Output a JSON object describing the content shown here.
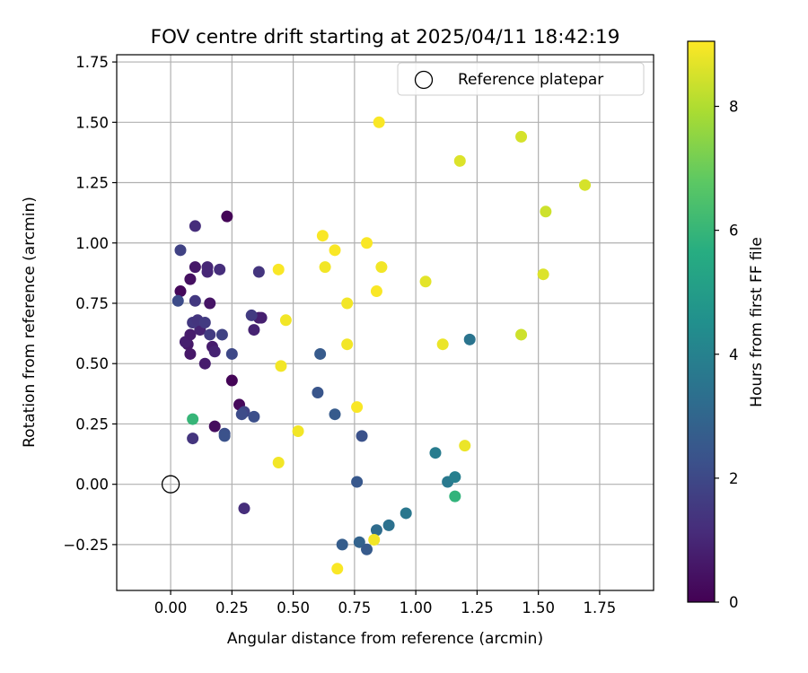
{
  "chart_data": {
    "type": "scatter",
    "title": "FOV centre drift starting at 2025/04/11 18:42:19",
    "xlabel": "Angular distance from reference (arcmin)",
    "ylabel": "Rotation from reference (arcmin)",
    "xlim": [
      -0.22,
      1.97
    ],
    "ylim": [
      -0.44,
      1.78
    ],
    "xticks": [
      0.0,
      0.25,
      0.5,
      0.75,
      1.0,
      1.25,
      1.5,
      1.75
    ],
    "xtick_labels": [
      "0.00",
      "0.25",
      "0.50",
      "0.75",
      "1.00",
      "1.25",
      "1.50",
      "1.75"
    ],
    "yticks": [
      -0.25,
      0.0,
      0.25,
      0.5,
      0.75,
      1.0,
      1.25,
      1.5,
      1.75
    ],
    "ytick_labels": [
      "−0.25",
      "0.00",
      "0.25",
      "0.50",
      "0.75",
      "1.00",
      "1.25",
      "1.50",
      "1.75"
    ],
    "grid": true,
    "legend": {
      "position": "top-right",
      "label": "Reference platepar"
    },
    "reference_point": {
      "x": 0.0,
      "y": 0.0
    },
    "colorbar": {
      "label": "Hours from first FF file",
      "colormap": "viridis",
      "range": [
        0,
        9.05
      ],
      "ticks": [
        0,
        2,
        4,
        6,
        8
      ],
      "tick_labels": [
        "0",
        "2",
        "4",
        "6",
        "8"
      ],
      "colors": [
        "#440154",
        "#472c7a",
        "#3b518b",
        "#2c718e",
        "#21908d",
        "#27ad81",
        "#5cc863",
        "#aadc32",
        "#fde725"
      ]
    },
    "points": [
      {
        "x": 0.23,
        "y": 1.11,
        "h": 0.1
      },
      {
        "x": 0.25,
        "y": 0.43,
        "h": 0.1
      },
      {
        "x": 0.28,
        "y": 0.33,
        "h": 0.2
      },
      {
        "x": 0.18,
        "y": 0.24,
        "h": 0.3
      },
      {
        "x": 0.04,
        "y": 0.8,
        "h": 0.2
      },
      {
        "x": 0.08,
        "y": 0.85,
        "h": 0.4
      },
      {
        "x": 0.1,
        "y": 0.9,
        "h": 0.6
      },
      {
        "x": 0.16,
        "y": 0.75,
        "h": 0.5
      },
      {
        "x": 0.07,
        "y": 0.58,
        "h": 0.6
      },
      {
        "x": 0.06,
        "y": 0.59,
        "h": 0.8
      },
      {
        "x": 0.08,
        "y": 0.62,
        "h": 0.7
      },
      {
        "x": 0.12,
        "y": 0.64,
        "h": 0.9
      },
      {
        "x": 0.08,
        "y": 0.54,
        "h": 0.6
      },
      {
        "x": 0.17,
        "y": 0.57,
        "h": 0.7
      },
      {
        "x": 0.18,
        "y": 0.55,
        "h": 0.9
      },
      {
        "x": 0.14,
        "y": 0.5,
        "h": 0.7
      },
      {
        "x": 0.15,
        "y": 0.88,
        "h": 1.0
      },
      {
        "x": 0.15,
        "y": 0.9,
        "h": 1.0
      },
      {
        "x": 0.2,
        "y": 0.89,
        "h": 1.2
      },
      {
        "x": 0.36,
        "y": 0.69,
        "h": 0.7
      },
      {
        "x": 0.37,
        "y": 0.69,
        "h": 0.8
      },
      {
        "x": 0.34,
        "y": 0.64,
        "h": 0.9
      },
      {
        "x": 0.1,
        "y": 1.07,
        "h": 1.2
      },
      {
        "x": 0.09,
        "y": 0.19,
        "h": 1.4
      },
      {
        "x": 0.3,
        "y": -0.1,
        "h": 1.2
      },
      {
        "x": 0.09,
        "y": 0.67,
        "h": 1.5
      },
      {
        "x": 0.11,
        "y": 0.68,
        "h": 1.4
      },
      {
        "x": 0.14,
        "y": 0.67,
        "h": 1.6
      },
      {
        "x": 0.16,
        "y": 0.62,
        "h": 1.6
      },
      {
        "x": 0.21,
        "y": 0.62,
        "h": 1.8
      },
      {
        "x": 0.1,
        "y": 0.76,
        "h": 1.5
      },
      {
        "x": 0.33,
        "y": 0.7,
        "h": 1.6
      },
      {
        "x": 0.36,
        "y": 0.88,
        "h": 1.4
      },
      {
        "x": 0.04,
        "y": 0.97,
        "h": 1.8
      },
      {
        "x": 0.03,
        "y": 0.76,
        "h": 2.1
      },
      {
        "x": 0.25,
        "y": 0.54,
        "h": 2.0
      },
      {
        "x": 0.3,
        "y": 0.3,
        "h": 1.9
      },
      {
        "x": 0.29,
        "y": 0.29,
        "h": 2.1
      },
      {
        "x": 0.34,
        "y": 0.28,
        "h": 2.2
      },
      {
        "x": 0.22,
        "y": 0.21,
        "h": 2.2
      },
      {
        "x": 0.22,
        "y": 0.2,
        "h": 2.3
      },
      {
        "x": 0.6,
        "y": 0.38,
        "h": 2.4
      },
      {
        "x": 0.61,
        "y": 0.54,
        "h": 2.6
      },
      {
        "x": 0.67,
        "y": 0.29,
        "h": 2.6
      },
      {
        "x": 0.78,
        "y": 0.2,
        "h": 2.3
      },
      {
        "x": 0.76,
        "y": 0.01,
        "h": 2.5
      },
      {
        "x": 0.7,
        "y": -0.25,
        "h": 2.7
      },
      {
        "x": 0.77,
        "y": -0.24,
        "h": 2.9
      },
      {
        "x": 0.8,
        "y": -0.27,
        "h": 2.6
      },
      {
        "x": 0.84,
        "y": -0.19,
        "h": 3.2
      },
      {
        "x": 0.89,
        "y": -0.17,
        "h": 3.4
      },
      {
        "x": 0.96,
        "y": -0.12,
        "h": 3.6
      },
      {
        "x": 1.22,
        "y": 0.6,
        "h": 3.5
      },
      {
        "x": 1.08,
        "y": 0.13,
        "h": 3.8
      },
      {
        "x": 1.13,
        "y": 0.01,
        "h": 3.7
      },
      {
        "x": 1.16,
        "y": 0.03,
        "h": 3.9
      },
      {
        "x": 1.16,
        "y": -0.05,
        "h": 5.9
      },
      {
        "x": 0.09,
        "y": 0.27,
        "h": 6.0
      },
      {
        "x": 0.44,
        "y": 0.89,
        "h": 9.0
      },
      {
        "x": 0.47,
        "y": 0.68,
        "h": 8.9
      },
      {
        "x": 0.45,
        "y": 0.49,
        "h": 8.9
      },
      {
        "x": 0.52,
        "y": 0.22,
        "h": 8.9
      },
      {
        "x": 0.44,
        "y": 0.09,
        "h": 8.9
      },
      {
        "x": 0.62,
        "y": 1.03,
        "h": 9.0
      },
      {
        "x": 0.67,
        "y": 0.97,
        "h": 9.0
      },
      {
        "x": 0.63,
        "y": 0.9,
        "h": 8.9
      },
      {
        "x": 0.72,
        "y": 0.75,
        "h": 8.9
      },
      {
        "x": 0.72,
        "y": 0.58,
        "h": 8.9
      },
      {
        "x": 0.76,
        "y": 0.32,
        "h": 9.0
      },
      {
        "x": 0.8,
        "y": 1.0,
        "h": 9.0
      },
      {
        "x": 0.86,
        "y": 0.9,
        "h": 8.9
      },
      {
        "x": 0.84,
        "y": 0.8,
        "h": 9.0
      },
      {
        "x": 0.85,
        "y": 1.5,
        "h": 9.0
      },
      {
        "x": 0.68,
        "y": -0.35,
        "h": 9.0
      },
      {
        "x": 0.83,
        "y": -0.23,
        "h": 8.9
      },
      {
        "x": 1.04,
        "y": 0.84,
        "h": 8.7
      },
      {
        "x": 1.11,
        "y": 0.58,
        "h": 8.8
      },
      {
        "x": 1.18,
        "y": 1.34,
        "h": 8.6
      },
      {
        "x": 1.2,
        "y": 0.16,
        "h": 8.8
      },
      {
        "x": 1.43,
        "y": 1.44,
        "h": 8.5
      },
      {
        "x": 1.53,
        "y": 1.13,
        "h": 8.4
      },
      {
        "x": 1.52,
        "y": 0.87,
        "h": 8.6
      },
      {
        "x": 1.43,
        "y": 0.62,
        "h": 8.4
      },
      {
        "x": 1.69,
        "y": 1.24,
        "h": 8.5
      }
    ]
  }
}
